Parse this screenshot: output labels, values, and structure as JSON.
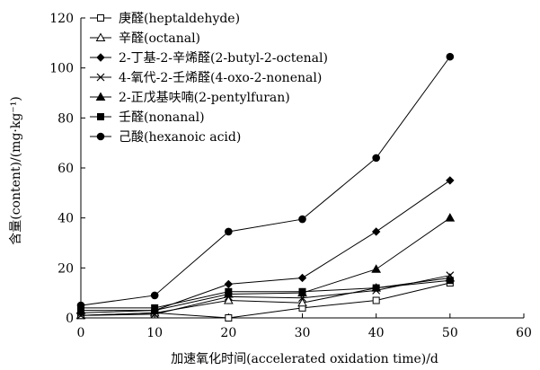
{
  "chart_data": {
    "type": "line",
    "x": [
      0,
      10,
      20,
      30,
      40,
      50
    ],
    "xlim": [
      0,
      60
    ],
    "ylim": [
      0,
      120
    ],
    "xticks": [
      0,
      10,
      20,
      30,
      40,
      50,
      60
    ],
    "yticks": [
      0,
      20,
      40,
      60,
      80,
      100,
      120
    ],
    "xlabel": "加速氧化时间(accelerated oxidation time)/d",
    "ylabel": "含量(content)/(mg·kg⁻¹)",
    "grid": false,
    "legend_position": "top-left",
    "series": [
      {
        "name": "庚醛(heptaldehyde)",
        "marker": "open-square",
        "values": [
          1,
          2,
          0,
          4,
          7,
          14
        ]
      },
      {
        "name": "辛醛(octanal)",
        "marker": "open-triangle",
        "values": [
          1,
          2,
          7,
          6,
          12,
          16
        ]
      },
      {
        "name": "2-丁基-2-辛烯醛(2-butyl-2-octenal)",
        "marker": "diamond",
        "values": [
          2,
          3,
          13.5,
          16,
          34.5,
          55
        ]
      },
      {
        "name": "4-氧代-2-壬烯醛(4-oxo-2-nonenal)",
        "marker": "cross",
        "values": [
          1,
          1.5,
          8.5,
          8,
          11,
          17
        ]
      },
      {
        "name": "2-正戊基呋喃(2-pentylfuran)",
        "marker": "filled-triangle",
        "values": [
          3,
          3,
          9.5,
          10,
          19.5,
          40
        ]
      },
      {
        "name": "壬醛(nonanal)",
        "marker": "filled-square",
        "values": [
          4,
          4,
          10.5,
          10.5,
          12,
          15
        ]
      },
      {
        "name": "己酸(hexanoic acid)",
        "marker": "filled-circle",
        "values": [
          5,
          9,
          34.5,
          39.5,
          64,
          104.5
        ]
      }
    ]
  }
}
